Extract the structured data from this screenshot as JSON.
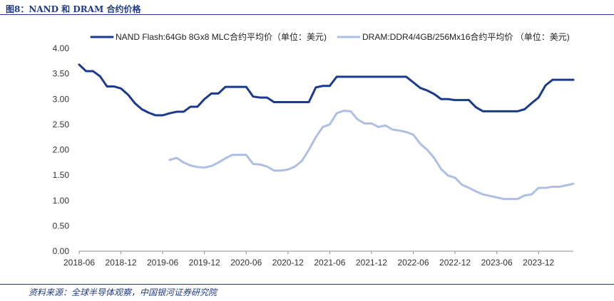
{
  "header": {
    "title": "图8：NAND 和 DRAM 合约价格"
  },
  "footer": {
    "source": "资料来源：全球半导体观察，中国银河证券研究院"
  },
  "colors": {
    "accent": "#1f3a8a",
    "nand": "#1a3a8e",
    "dram": "#aebfe3"
  },
  "chart_data": {
    "type": "line",
    "title": "",
    "xlabel": "",
    "ylabel": "",
    "ylim": [
      0,
      4
    ],
    "yticks": [
      "0.00",
      "0.50",
      "1.00",
      "1.50",
      "2.00",
      "2.50",
      "3.00",
      "3.50",
      "4.00"
    ],
    "x_range": [
      "2018-06",
      "2024-05"
    ],
    "x_ticks": [
      "2018-06",
      "2018-12",
      "2019-06",
      "2019-12",
      "2020-06",
      "2020-12",
      "2021-06",
      "2021-12",
      "2022-06",
      "2022-12",
      "2023-06",
      "2023-12"
    ],
    "legend_position": "top",
    "grid": false,
    "series": [
      {
        "name": "NAND Flash:64Gb 8Gx8 MLC合约平均价（单位：美元)",
        "color": "#1a3a8e",
        "points": [
          [
            "2018-06",
            3.68
          ],
          [
            "2018-07",
            3.55
          ],
          [
            "2018-08",
            3.55
          ],
          [
            "2018-09",
            3.45
          ],
          [
            "2018-10",
            3.25
          ],
          [
            "2018-11",
            3.25
          ],
          [
            "2018-12",
            3.21
          ],
          [
            "2019-01",
            3.09
          ],
          [
            "2019-02",
            2.92
          ],
          [
            "2019-03",
            2.8
          ],
          [
            "2019-04",
            2.73
          ],
          [
            "2019-05",
            2.68
          ],
          [
            "2019-06",
            2.68
          ],
          [
            "2019-07",
            2.72
          ],
          [
            "2019-08",
            2.75
          ],
          [
            "2019-09",
            2.75
          ],
          [
            "2019-10",
            2.85
          ],
          [
            "2019-11",
            2.85
          ],
          [
            "2019-12",
            3.0
          ],
          [
            "2020-01",
            3.11
          ],
          [
            "2020-02",
            3.11
          ],
          [
            "2020-03",
            3.24
          ],
          [
            "2020-04",
            3.24
          ],
          [
            "2020-05",
            3.24
          ],
          [
            "2020-06",
            3.24
          ],
          [
            "2020-07",
            3.05
          ],
          [
            "2020-08",
            3.03
          ],
          [
            "2020-09",
            3.03
          ],
          [
            "2020-10",
            2.94
          ],
          [
            "2020-11",
            2.94
          ],
          [
            "2020-12",
            2.94
          ],
          [
            "2021-01",
            2.94
          ],
          [
            "2021-02",
            2.94
          ],
          [
            "2021-03",
            2.94
          ],
          [
            "2021-04",
            3.23
          ],
          [
            "2021-05",
            3.26
          ],
          [
            "2021-06",
            3.26
          ],
          [
            "2021-07",
            3.44
          ],
          [
            "2021-08",
            3.44
          ],
          [
            "2021-09",
            3.44
          ],
          [
            "2021-10",
            3.44
          ],
          [
            "2021-11",
            3.44
          ],
          [
            "2021-12",
            3.44
          ],
          [
            "2022-01",
            3.44
          ],
          [
            "2022-02",
            3.44
          ],
          [
            "2022-03",
            3.44
          ],
          [
            "2022-04",
            3.44
          ],
          [
            "2022-05",
            3.44
          ],
          [
            "2022-06",
            3.33
          ],
          [
            "2022-07",
            3.22
          ],
          [
            "2022-08",
            3.17
          ],
          [
            "2022-09",
            3.1
          ],
          [
            "2022-10",
            3.0
          ],
          [
            "2022-11",
            3.0
          ],
          [
            "2022-12",
            2.98
          ],
          [
            "2023-01",
            2.98
          ],
          [
            "2023-02",
            2.98
          ],
          [
            "2023-03",
            2.84
          ],
          [
            "2023-04",
            2.76
          ],
          [
            "2023-05",
            2.76
          ],
          [
            "2023-06",
            2.76
          ],
          [
            "2023-07",
            2.76
          ],
          [
            "2023-08",
            2.76
          ],
          [
            "2023-09",
            2.76
          ],
          [
            "2023-10",
            2.8
          ],
          [
            "2023-11",
            2.92
          ],
          [
            "2023-12",
            3.03
          ],
          [
            "2024-01",
            3.27
          ],
          [
            "2024-02",
            3.38
          ],
          [
            "2024-03",
            3.38
          ],
          [
            "2024-04",
            3.38
          ],
          [
            "2024-05",
            3.38
          ]
        ]
      },
      {
        "name": "DRAM:DDR4/4GB/256Mx16合约平均价 （单位：美元)",
        "color": "#aebfe3",
        "points": [
          [
            "2019-07",
            1.8
          ],
          [
            "2019-08",
            1.84
          ],
          [
            "2019-09",
            1.75
          ],
          [
            "2019-10",
            1.69
          ],
          [
            "2019-11",
            1.66
          ],
          [
            "2019-12",
            1.65
          ],
          [
            "2020-01",
            1.68
          ],
          [
            "2020-02",
            1.75
          ],
          [
            "2020-03",
            1.83
          ],
          [
            "2020-04",
            1.9
          ],
          [
            "2020-05",
            1.9
          ],
          [
            "2020-06",
            1.9
          ],
          [
            "2020-07",
            1.72
          ],
          [
            "2020-08",
            1.71
          ],
          [
            "2020-09",
            1.67
          ],
          [
            "2020-10",
            1.59
          ],
          [
            "2020-11",
            1.59
          ],
          [
            "2020-12",
            1.61
          ],
          [
            "2021-01",
            1.67
          ],
          [
            "2021-02",
            1.78
          ],
          [
            "2021-03",
            2.0
          ],
          [
            "2021-04",
            2.25
          ],
          [
            "2021-05",
            2.45
          ],
          [
            "2021-06",
            2.5
          ],
          [
            "2021-07",
            2.72
          ],
          [
            "2021-08",
            2.77
          ],
          [
            "2021-09",
            2.76
          ],
          [
            "2021-10",
            2.6
          ],
          [
            "2021-11",
            2.52
          ],
          [
            "2021-12",
            2.52
          ],
          [
            "2022-01",
            2.45
          ],
          [
            "2022-02",
            2.48
          ],
          [
            "2022-03",
            2.4
          ],
          [
            "2022-04",
            2.38
          ],
          [
            "2022-05",
            2.35
          ],
          [
            "2022-06",
            2.3
          ],
          [
            "2022-07",
            2.12
          ],
          [
            "2022-08",
            2.0
          ],
          [
            "2022-09",
            1.84
          ],
          [
            "2022-10",
            1.62
          ],
          [
            "2022-11",
            1.49
          ],
          [
            "2022-12",
            1.45
          ],
          [
            "2023-01",
            1.31
          ],
          [
            "2023-02",
            1.25
          ],
          [
            "2023-03",
            1.18
          ],
          [
            "2023-04",
            1.12
          ],
          [
            "2023-05",
            1.09
          ],
          [
            "2023-06",
            1.06
          ],
          [
            "2023-07",
            1.03
          ],
          [
            "2023-08",
            1.03
          ],
          [
            "2023-09",
            1.03
          ],
          [
            "2023-10",
            1.1
          ],
          [
            "2023-11",
            1.12
          ],
          [
            "2023-12",
            1.25
          ],
          [
            "2024-01",
            1.25
          ],
          [
            "2024-02",
            1.27
          ],
          [
            "2024-03",
            1.27
          ],
          [
            "2024-04",
            1.3
          ],
          [
            "2024-05",
            1.33
          ]
        ]
      }
    ]
  }
}
